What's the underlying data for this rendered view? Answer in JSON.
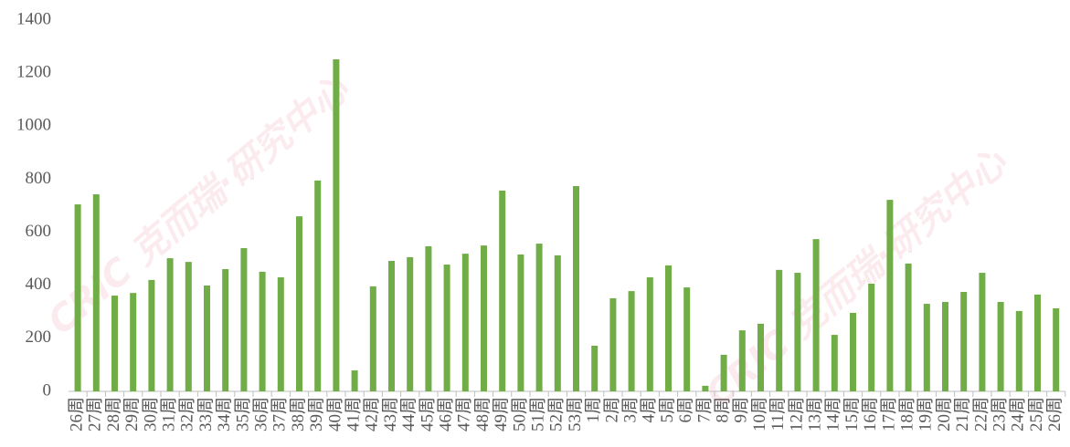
{
  "chart_data": {
    "type": "bar",
    "watermark": "CRIC 克而瑞·研究中心",
    "categories": [
      "26周",
      "27周",
      "28周",
      "29周",
      "30周",
      "31周",
      "32周",
      "33周",
      "34周",
      "35周",
      "36周",
      "37周",
      "38周",
      "39周",
      "40周",
      "41周",
      "42周",
      "43周",
      "44周",
      "45周",
      "46周",
      "47周",
      "48周",
      "49周",
      "50周",
      "51周",
      "52周",
      "53周",
      "1周",
      "2周",
      "3周",
      "4周",
      "5周",
      "6周",
      "7周",
      "8周",
      "9周",
      "10周",
      "11周",
      "12周",
      "13周",
      "14周",
      "15周",
      "16周",
      "17周",
      "18周",
      "19周",
      "20周",
      "21周",
      "22周",
      "23周",
      "24周",
      "25周",
      "26周"
    ],
    "values": [
      705,
      743,
      361,
      371,
      420,
      502,
      488,
      399,
      461,
      540,
      451,
      430,
      660,
      795,
      1252,
      79,
      396,
      492,
      506,
      547,
      478,
      519,
      550,
      757,
      516,
      557,
      513,
      774,
      172,
      351,
      378,
      430,
      475,
      392,
      21,
      138,
      230,
      255,
      458,
      447,
      574,
      213,
      296,
      406,
      722,
      482,
      330,
      337,
      375,
      447,
      337,
      303,
      365,
      313
    ],
    "color": "#70ad47",
    "ylim": [
      0,
      1400
    ],
    "yticks": [
      0,
      200,
      400,
      600,
      800,
      1000,
      1200,
      1400
    ],
    "grid": false
  }
}
